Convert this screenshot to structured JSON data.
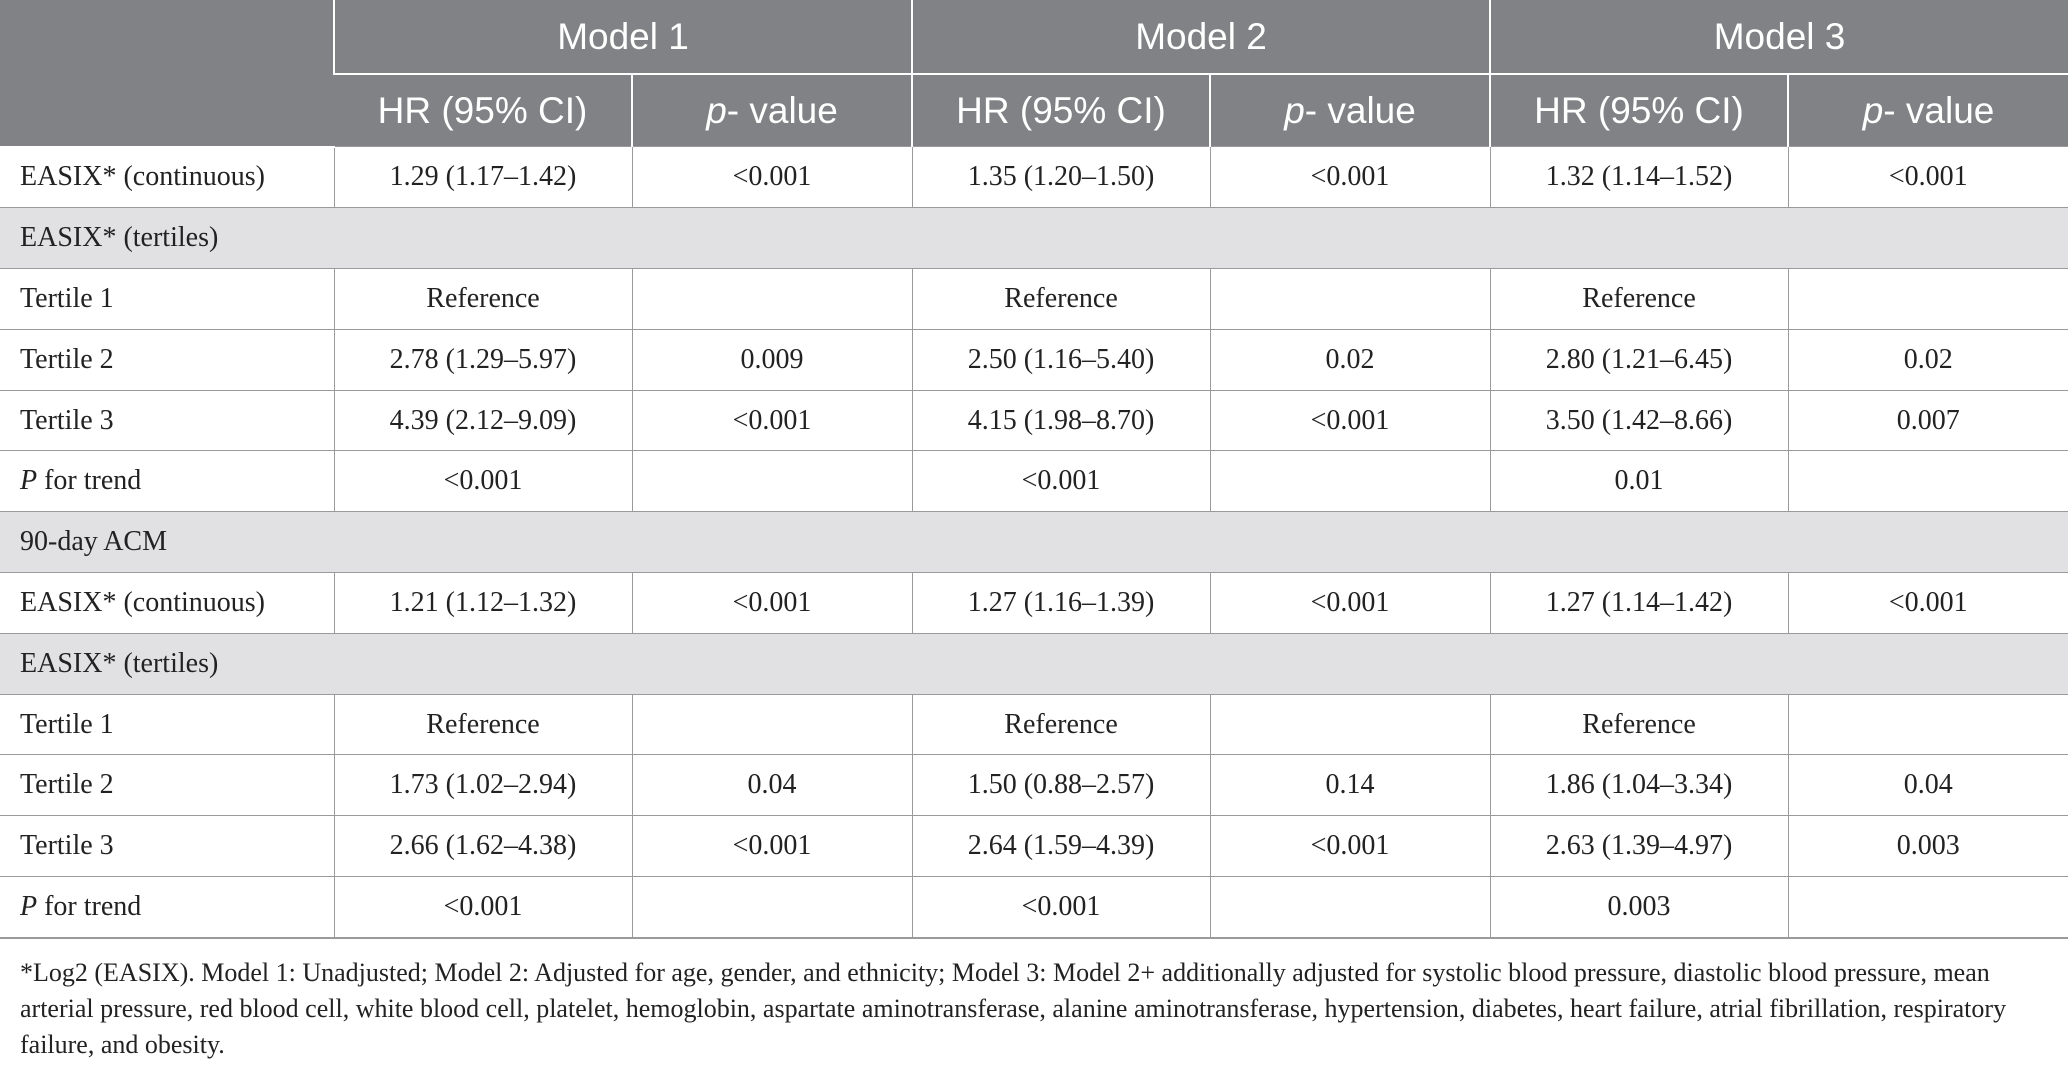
{
  "header": {
    "models": [
      "Model 1",
      "Model 2",
      "Model 3"
    ],
    "hr_label": "HR (95% CI)",
    "p_label_italic": "p",
    "p_label_rest": "- value"
  },
  "rows": [
    {
      "type": "data",
      "label": "EASIX* (continuous)",
      "cells": [
        "1.29 (1.17–1.42)",
        "<0.001",
        "1.35 (1.20–1.50)",
        "<0.001",
        "1.32 (1.14–1.52)",
        "<0.001"
      ]
    },
    {
      "type": "section",
      "label": "EASIX* (tertiles)"
    },
    {
      "type": "data",
      "label": "Tertile 1",
      "cells": [
        "Reference",
        "",
        "Reference",
        "",
        "Reference",
        ""
      ]
    },
    {
      "type": "data",
      "label": "Tertile 2",
      "cells": [
        "2.78 (1.29–5.97)",
        "0.009",
        "2.50 (1.16–5.40)",
        "0.02",
        "2.80 (1.21–6.45)",
        "0.02"
      ]
    },
    {
      "type": "data",
      "label": "Tertile 3",
      "cells": [
        "4.39 (2.12–9.09)",
        "<0.001",
        "4.15 (1.98–8.70)",
        "<0.001",
        "3.50 (1.42–8.66)",
        "0.007"
      ]
    },
    {
      "type": "trend",
      "label_italic": "P",
      "label_rest": " for trend",
      "cells": [
        "<0.001",
        "",
        "<0.001",
        "",
        "0.01",
        ""
      ]
    },
    {
      "type": "section",
      "label": "90-day ACM"
    },
    {
      "type": "data",
      "label": "EASIX* (continuous)",
      "cells": [
        "1.21 (1.12–1.32)",
        "<0.001",
        "1.27 (1.16–1.39)",
        "<0.001",
        "1.27 (1.14–1.42)",
        "<0.001"
      ]
    },
    {
      "type": "section",
      "label": "EASIX* (tertiles)"
    },
    {
      "type": "data",
      "label": "Tertile 1",
      "cells": [
        "Reference",
        "",
        "Reference",
        "",
        "Reference",
        ""
      ]
    },
    {
      "type": "data",
      "label": "Tertile 2",
      "cells": [
        "1.73 (1.02–2.94)",
        "0.04",
        "1.50 (0.88–2.57)",
        "0.14",
        "1.86 (1.04–3.34)",
        "0.04"
      ]
    },
    {
      "type": "data",
      "label": "Tertile 3",
      "cells": [
        "2.66 (1.62–4.38)",
        "<0.001",
        "2.64 (1.59–4.39)",
        "<0.001",
        "2.63 (1.39–4.97)",
        "0.003"
      ]
    },
    {
      "type": "trend",
      "label_italic": "P",
      "label_rest": " for trend",
      "cells": [
        "<0.001",
        "",
        "<0.001",
        "",
        "0.003",
        ""
      ]
    }
  ],
  "footnote": "*Log2 (EASIX). Model 1: Unadjusted; Model 2: Adjusted for age, gender, and ethnicity; Model 3: Model 2+ additionally adjusted for systolic blood pressure, diastolic blood pressure, mean arterial pressure, red blood cell, white blood cell, platelet, hemoglobin, aspartate aminotransferase, alanine aminotransferase, hypertension, diabetes, heart failure, atrial fibrillation, respiratory failure, and obesity."
}
